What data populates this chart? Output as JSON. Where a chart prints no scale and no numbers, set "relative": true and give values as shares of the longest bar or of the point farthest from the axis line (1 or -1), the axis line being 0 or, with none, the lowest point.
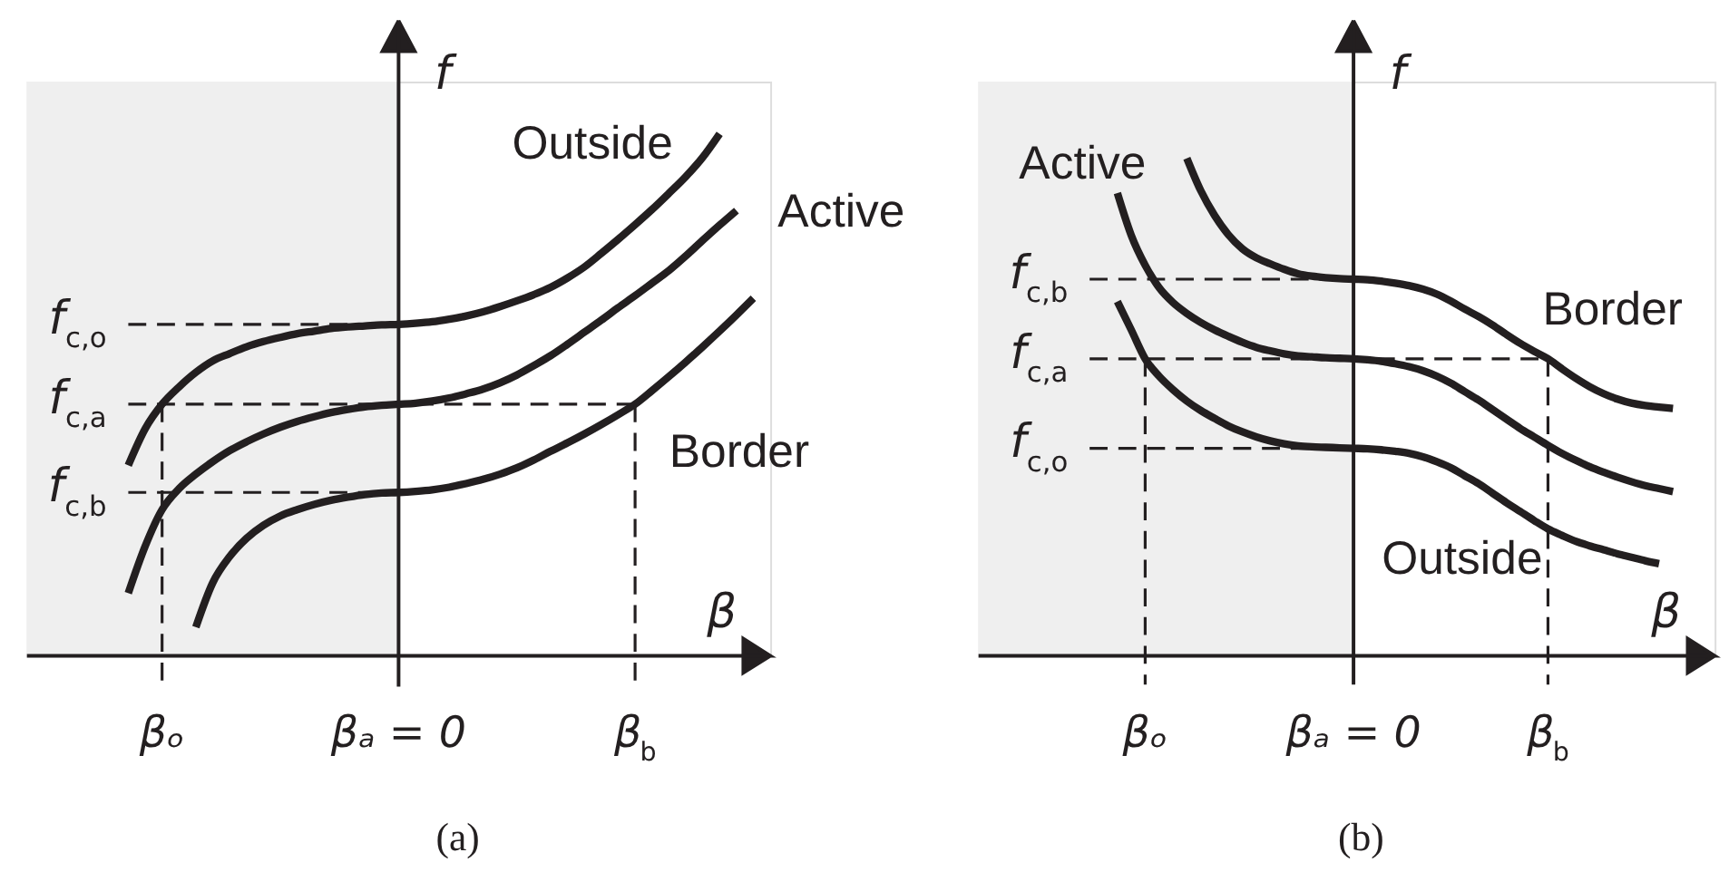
{
  "chart_data": [
    {
      "type": "line",
      "title": "(a)",
      "xlabel": "β",
      "ylabel": "f",
      "relative": true,
      "categories": [
        null,
        null,
        null,
        null,
        null,
        null,
        null,
        null,
        "βₒ",
        null,
        null,
        null,
        null,
        null,
        null,
        null,
        null,
        null,
        null,
        null,
        null,
        null,
        "βₐ = 0",
        null,
        null,
        null,
        null,
        null,
        null,
        null,
        null,
        null,
        null,
        null,
        null,
        null,
        "β$_{b}$",
        null,
        null,
        null,
        null,
        null,
        null,
        null,
        null
      ],
      "series": [
        {
          "name": "Outside",
          "color": "#231f20",
          "values": [
            null,
            null,
            null,
            null,
            null,
            null,
            0.365,
            0.435,
            0.482,
            0.515,
            0.543,
            0.565,
            0.579,
            0.592,
            0.602,
            0.61,
            0.617,
            0.622,
            0.627,
            0.63,
            0.632,
            0.634,
            0.635,
            0.637,
            0.64,
            0.645,
            0.651,
            0.659,
            0.669,
            0.68,
            0.692,
            0.706,
            0.724,
            0.745,
            0.771,
            0.798,
            0.826,
            0.855,
            0.886,
            0.918,
            0.955,
            1.0,
            null,
            null,
            null
          ]
        },
        {
          "name": "Active",
          "color": "#231f20",
          "values": [
            null,
            null,
            null,
            null,
            null,
            null,
            0.12,
            0.21,
            0.28,
            0.32,
            0.348,
            0.372,
            0.393,
            0.41,
            0.425,
            0.438,
            0.449,
            0.458,
            0.466,
            0.472,
            0.477,
            0.48,
            0.482,
            0.484,
            0.488,
            0.494,
            0.502,
            0.511,
            0.523,
            0.538,
            0.556,
            0.575,
            0.597,
            0.62,
            0.643,
            0.667,
            0.69,
            0.714,
            0.738,
            0.766,
            0.796,
            0.825,
            0.853,
            null,
            null
          ]
        },
        {
          "name": "Border",
          "color": "#231f20",
          "values": [
            null,
            null,
            null,
            null,
            null,
            null,
            null,
            null,
            null,
            null,
            0.055,
            0.14,
            0.19,
            0.225,
            0.25,
            0.268,
            0.28,
            0.29,
            0.298,
            0.304,
            0.309,
            0.312,
            0.313,
            0.315,
            0.318,
            0.323,
            0.33,
            0.338,
            0.348,
            0.36,
            0.375,
            0.392,
            0.408,
            0.425,
            0.443,
            0.462,
            0.482,
            0.508,
            0.535,
            0.563,
            0.592,
            0.622,
            0.653,
            0.685,
            null
          ]
        },
        {
          "color": "#231f20",
          "line_style": "dashed",
          "values": [
            null,
            null,
            null,
            null,
            null,
            null,
            0.635,
            0.635,
            0.635,
            0.635,
            0.635,
            0.635,
            0.635,
            0.635,
            0.635,
            0.635,
            0.635,
            0.635,
            0.635,
            0.635,
            0.635,
            0.635,
            0.635,
            null,
            null,
            null,
            null,
            null,
            null,
            null,
            null,
            null,
            null,
            null,
            null,
            null,
            null,
            null,
            null,
            null,
            null,
            null,
            null,
            null,
            null
          ]
        },
        {
          "color": "#231f20",
          "line_style": "dashed",
          "values": [
            null,
            null,
            null,
            null,
            null,
            null,
            0.482,
            0.482,
            0.482,
            0.482,
            0.482,
            0.482,
            0.482,
            0.482,
            0.482,
            0.482,
            0.482,
            0.482,
            0.482,
            0.482,
            0.482,
            0.482,
            0.482,
            0.482,
            0.482,
            0.482,
            0.482,
            0.482,
            0.482,
            0.482,
            0.482,
            0.482,
            0.482,
            0.482,
            0.482,
            0.482,
            0.482,
            null,
            null,
            null,
            null,
            null,
            null,
            null,
            null
          ]
        },
        {
          "color": "#231f20",
          "line_style": "dashed",
          "values": [
            null,
            null,
            null,
            null,
            null,
            null,
            0.313,
            0.313,
            0.313,
            0.313,
            0.313,
            0.313,
            0.313,
            0.313,
            0.313,
            0.313,
            0.313,
            0.313,
            0.313,
            0.313,
            0.313,
            0.313,
            0.313,
            null,
            null,
            null,
            null,
            null,
            null,
            null,
            null,
            null,
            null,
            null,
            null,
            null,
            null,
            null,
            null,
            null,
            null,
            null,
            null,
            null,
            null
          ]
        },
        {
          "color": "#231f20",
          "line_style": "dashed",
          "x": [
            "βₒ",
            "βₒ"
          ],
          "values": [
            0.482,
            -0.059
          ]
        },
        {
          "color": "#231f20",
          "line_style": "dashed",
          "x": [
            "β$_{b}$",
            "β$_{b}$"
          ],
          "values": [
            0.482,
            -0.059
          ]
        }
      ],
      "annotations": [
        "f$_{c,o}$",
        "f$_{c,a}$",
        "f$_{c,b}$"
      ]
    },
    {
      "type": "line",
      "title": "(b)",
      "xlabel": "β",
      "ylabel": "f",
      "relative": true,
      "categories": [
        null,
        null,
        null,
        null,
        null,
        null,
        null,
        null,
        null,
        null,
        null,
        null,
        "βₒ",
        null,
        null,
        null,
        null,
        null,
        null,
        null,
        null,
        null,
        null,
        null,
        null,
        null,
        null,
        "βₐ = 0",
        null,
        null,
        null,
        null,
        null,
        null,
        null,
        null,
        null,
        null,
        null,
        null,
        null,
        "β$_{b}$",
        null,
        null,
        null,
        null,
        null,
        null,
        null,
        null,
        null,
        null,
        null,
        null
      ],
      "series": [
        {
          "name": "Outside",
          "color": "#231f20",
          "values": [
            null,
            null,
            null,
            null,
            null,
            null,
            null,
            null,
            null,
            null,
            0.712,
            0.655,
            0.597,
            0.562,
            0.535,
            0.512,
            0.493,
            0.477,
            0.462,
            0.45,
            0.44,
            0.432,
            0.426,
            0.422,
            0.42,
            0.419,
            0.418,
            0.417,
            0.416,
            0.414,
            0.411,
            0.407,
            0.4,
            0.39,
            0.378,
            0.362,
            0.346,
            0.327,
            0.308,
            0.29,
            0.272,
            0.255,
            0.242,
            0.23,
            0.221,
            0.213,
            0.205,
            0.198,
            0.191,
            0.185,
            null,
            null,
            null,
            null
          ]
        },
        {
          "name": "Active",
          "color": "#231f20",
          "values": [
            null,
            null,
            null,
            null,
            null,
            null,
            null,
            null,
            null,
            null,
            0.93,
            0.845,
            0.785,
            0.74,
            0.71,
            0.688,
            0.67,
            0.655,
            0.642,
            0.63,
            0.62,
            0.613,
            0.607,
            0.603,
            0.601,
            0.599,
            0.598,
            0.597,
            0.595,
            0.592,
            0.587,
            0.581,
            0.573,
            0.562,
            0.548,
            0.531,
            0.514,
            0.495,
            0.476,
            0.457,
            0.44,
            0.423,
            0.407,
            0.393,
            0.38,
            0.369,
            0.359,
            0.35,
            0.342,
            0.336,
            0.33,
            null,
            null,
            null
          ]
        },
        {
          "name": "Border",
          "color": "#231f20",
          "values": [
            null,
            null,
            null,
            null,
            null,
            null,
            null,
            null,
            null,
            null,
            null,
            null,
            null,
            null,
            null,
            1.0,
            0.935,
            0.885,
            0.846,
            0.818,
            0.8,
            0.788,
            0.777,
            0.768,
            0.763,
            0.76,
            0.758,
            0.757,
            0.756,
            0.753,
            0.749,
            0.744,
            0.737,
            0.727,
            0.713,
            0.697,
            0.682,
            0.665,
            0.646,
            0.628,
            0.612,
            0.597,
            0.577,
            0.558,
            0.541,
            0.527,
            0.516,
            0.508,
            0.503,
            0.5,
            0.497,
            null,
            null,
            null
          ]
        },
        {
          "color": "#231f20",
          "line_style": "dashed",
          "values": [
            null,
            null,
            null,
            null,
            null,
            null,
            null,
            null,
            0.757,
            0.757,
            0.757,
            0.757,
            0.757,
            0.757,
            0.757,
            0.757,
            0.757,
            0.757,
            0.757,
            0.757,
            0.757,
            0.757,
            0.757,
            0.757,
            0.757,
            0.757,
            0.757,
            0.757,
            null,
            null,
            null,
            null,
            null,
            null,
            null,
            null,
            null,
            null,
            null,
            null,
            null,
            null,
            null,
            null,
            null,
            null,
            null,
            null,
            null,
            null,
            null,
            null,
            null,
            null
          ]
        },
        {
          "color": "#231f20",
          "line_style": "dashed",
          "values": [
            null,
            null,
            null,
            null,
            null,
            null,
            null,
            null,
            0.597,
            0.597,
            0.597,
            0.597,
            0.597,
            0.597,
            0.597,
            0.597,
            0.597,
            0.597,
            0.597,
            0.597,
            0.597,
            0.597,
            0.597,
            0.597,
            0.597,
            0.597,
            0.597,
            0.597,
            0.597,
            0.597,
            0.597,
            0.597,
            0.597,
            0.597,
            0.597,
            0.597,
            0.597,
            0.597,
            0.597,
            0.597,
            0.597,
            0.597,
            null,
            null,
            null,
            null,
            null,
            null,
            null,
            null,
            null,
            null,
            null,
            null
          ]
        },
        {
          "color": "#231f20",
          "line_style": "dashed",
          "values": [
            null,
            null,
            null,
            null,
            null,
            null,
            null,
            null,
            0.417,
            0.417,
            0.417,
            0.417,
            0.417,
            0.417,
            0.417,
            0.417,
            0.417,
            0.417,
            0.417,
            0.417,
            0.417,
            0.417,
            0.417,
            0.417,
            0.417,
            0.417,
            0.417,
            0.417,
            null,
            null,
            null,
            null,
            null,
            null,
            null,
            null,
            null,
            null,
            null,
            null,
            null,
            null,
            null,
            null,
            null,
            null,
            null,
            null,
            null,
            null,
            null,
            null,
            null,
            null
          ]
        },
        {
          "color": "#231f20",
          "line_style": "dashed",
          "x": [
            "βₒ",
            "βₒ"
          ],
          "values": [
            0.597,
            -0.058
          ]
        },
        {
          "color": "#231f20",
          "line_style": "dashed",
          "x": [
            "β$_{b}$",
            "β$_{b}$"
          ],
          "values": [
            0.597,
            -0.058
          ]
        }
      ],
      "annotations": [
        "f$_{c,b}$",
        "f$_{c,a}$",
        "f$_{c,o}$"
      ]
    }
  ]
}
